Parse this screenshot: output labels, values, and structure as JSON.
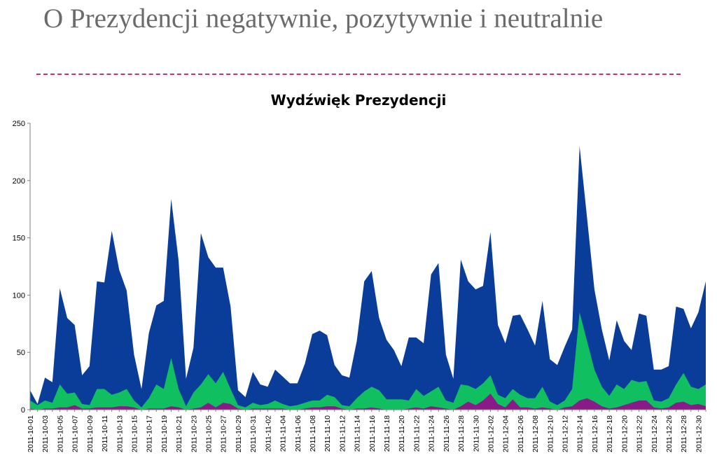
{
  "slide": {
    "title": "O Prezydencji negatywnie, pozytywnie i neutralnie"
  },
  "colors": {
    "neutral": "#0a3d9a",
    "positive": "#10c060",
    "negative": "#8a1a8a",
    "divider": "#c2347a",
    "title": "#6b6b6b"
  },
  "chart_data": {
    "type": "area",
    "stacked": true,
    "title": "Wydźwięk Prezydencji",
    "xlabel": "",
    "ylabel": "",
    "ylim": [
      0,
      250
    ],
    "yticks": [
      0,
      50,
      100,
      150,
      200,
      250
    ],
    "grid": false,
    "legend": "none",
    "x_tick_labels": [
      "2011-10-01",
      "2011-10-03",
      "2011-10-05",
      "2011-10-07",
      "2011-10-09",
      "2011-10-11",
      "2011-10-13",
      "2011-10-15",
      "2011-10-17",
      "2011-10-19",
      "2011-10-21",
      "2011-10-23",
      "2011-10-25",
      "2011-10-27",
      "2011-10-29",
      "2011-10-31",
      "2011-11-02",
      "2011-11-04",
      "2011-11-06",
      "2011-11-08",
      "2011-11-10",
      "2011-11-12",
      "2011-11-14",
      "2011-11-16",
      "2011-11-18",
      "2011-11-20",
      "2011-11-22",
      "2011-11-24",
      "2011-11-26",
      "2011-11-28",
      "2011-11-30",
      "2011-12-02",
      "2011-12-04",
      "2011-12-06",
      "2011-12-08",
      "2011-12-10",
      "2011-12-12",
      "2011-12-14",
      "2011-12-16",
      "2011-12-18",
      "2011-12-20",
      "2011-12-22",
      "2011-12-24",
      "2011-12-26",
      "2011-12-28",
      "2011-12-30"
    ],
    "x_start": "2011-10-01",
    "totals": [
      17,
      5,
      28,
      24,
      106,
      80,
      74,
      30,
      38,
      112,
      111,
      156,
      122,
      104,
      48,
      18,
      67,
      91,
      95,
      184,
      130,
      27,
      54,
      154,
      133,
      124,
      124,
      90,
      17,
      11,
      33,
      22,
      20,
      35,
      29,
      23,
      23,
      40,
      66,
      69,
      65,
      39,
      30,
      28,
      60,
      112,
      121,
      80,
      61,
      52,
      38,
      63,
      63,
      58,
      118,
      128,
      48,
      27,
      131,
      112,
      105,
      108,
      155,
      74,
      58,
      82,
      83,
      70,
      56,
      95,
      44,
      39,
      55,
      70,
      230,
      168,
      105,
      70,
      43,
      78,
      60,
      52,
      84,
      82,
      35,
      35,
      38,
      90,
      88,
      71,
      85,
      112
    ],
    "positive": [
      8,
      4,
      8,
      6,
      22,
      14,
      15,
      5,
      4,
      18,
      18,
      13,
      15,
      18,
      8,
      2,
      10,
      22,
      18,
      45,
      18,
      3,
      15,
      22,
      31,
      23,
      33,
      18,
      4,
      2,
      6,
      4,
      5,
      8,
      5,
      3,
      4,
      6,
      8,
      8,
      13,
      11,
      4,
      3,
      10,
      16,
      20,
      17,
      9,
      9,
      9,
      8,
      18,
      12,
      16,
      20,
      8,
      6,
      22,
      21,
      18,
      23,
      30,
      13,
      10,
      18,
      13,
      10,
      10,
      20,
      7,
      4,
      8,
      18,
      85,
      60,
      35,
      20,
      12,
      22,
      18,
      26,
      24,
      25,
      8,
      7,
      10,
      22,
      32,
      20,
      18,
      22
    ],
    "negative": [
      1,
      0,
      1,
      1,
      2,
      2,
      4,
      1,
      1,
      2,
      2,
      2,
      3,
      3,
      2,
      0,
      1,
      1,
      1,
      3,
      2,
      0,
      1,
      2,
      6,
      2,
      6,
      5,
      1,
      0,
      1,
      1,
      1,
      1,
      1,
      0,
      0,
      1,
      2,
      2,
      3,
      3,
      1,
      0,
      1,
      1,
      2,
      1,
      0,
      0,
      0,
      1,
      2,
      1,
      3,
      2,
      1,
      0,
      3,
      7,
      4,
      8,
      14,
      5,
      2,
      9,
      2,
      2,
      1,
      2,
      1,
      0,
      2,
      3,
      8,
      10,
      7,
      3,
      1,
      2,
      4,
      6,
      8,
      8,
      2,
      1,
      2,
      6,
      7,
      4,
      5,
      3
    ]
  }
}
